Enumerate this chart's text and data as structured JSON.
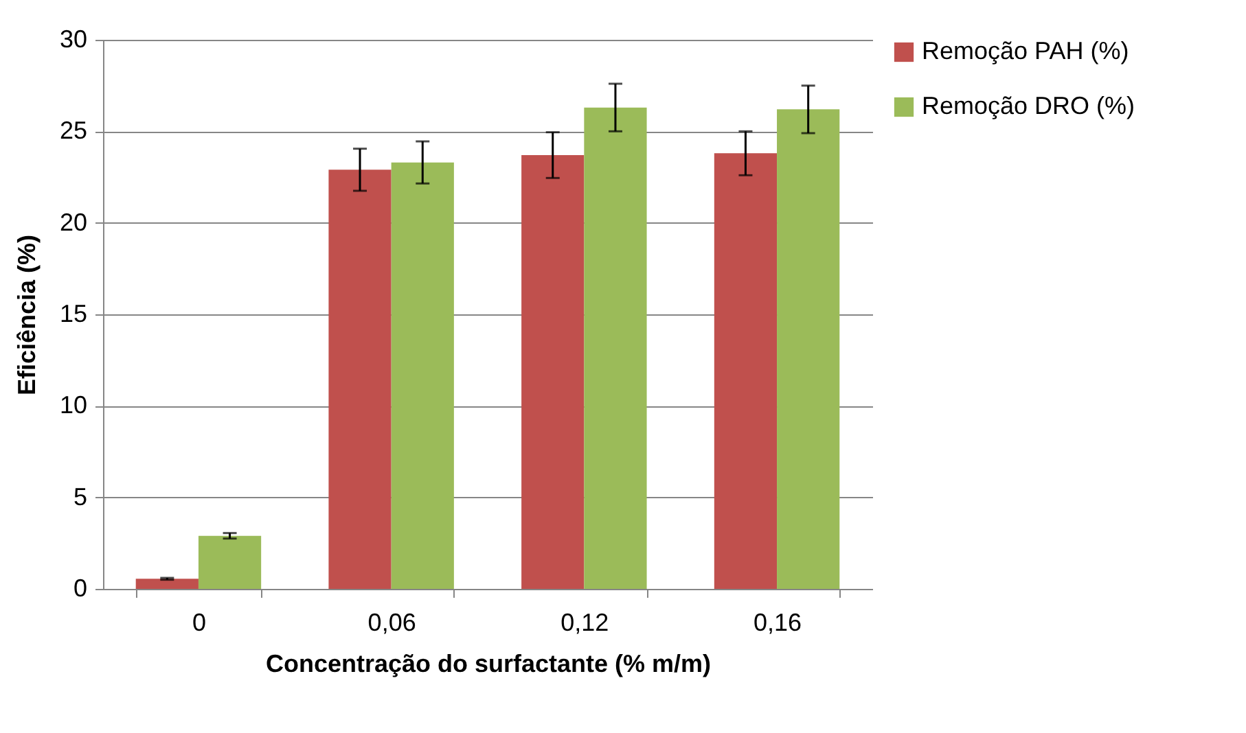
{
  "chart_data": {
    "type": "bar",
    "xlabel": "Concentração do surfactante (% m/m)",
    "ylabel": "Eficiência (%)",
    "categories": [
      "0",
      "0,06",
      "0,12",
      "0,16"
    ],
    "series": [
      {
        "name": "Remoção PAH (%)",
        "color": "#c0504d",
        "values": [
          0.55,
          22.9,
          23.7,
          23.8
        ],
        "errors": [
          0.05,
          1.15,
          1.25,
          1.2
        ]
      },
      {
        "name": "Remoção DRO (%)",
        "color": "#9bbb59",
        "values": [
          2.9,
          23.3,
          26.3,
          26.2
        ],
        "errors": [
          0.15,
          1.15,
          1.3,
          1.3
        ]
      }
    ],
    "ylim": [
      0,
      30
    ],
    "yticks": [
      0,
      5,
      10,
      15,
      20,
      25,
      30
    ],
    "grid": "y",
    "legend": "right"
  }
}
